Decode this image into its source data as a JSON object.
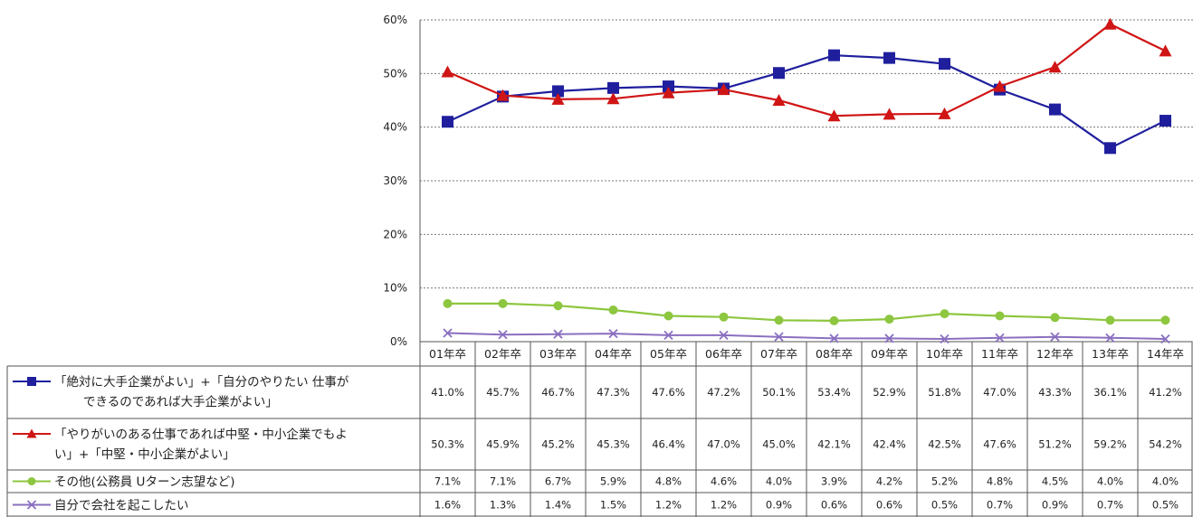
{
  "chart_data": {
    "type": "line",
    "title": "",
    "xlabel": "",
    "ylabel": "",
    "ylim": [
      0,
      60
    ],
    "y_ticks": [
      "0%",
      "10%",
      "20%",
      "30%",
      "40%",
      "50%",
      "60%"
    ],
    "y_tick_values": [
      0,
      10,
      20,
      30,
      40,
      50,
      60
    ],
    "grid": true,
    "categories": [
      "01年卒",
      "02年卒",
      "03年卒",
      "04年卒",
      "05年卒",
      "06年卒",
      "07年卒",
      "08年卒",
      "09年卒",
      "10年卒",
      "11年卒",
      "12年卒",
      "13年卒",
      "14年卒"
    ],
    "series": [
      {
        "legend_lines": [
          "「絶対に大手企業がよい」+「自分のやりたい 仕事が",
          "できるのであれば大手企業がよい」"
        ],
        "color": "#1f1f9e",
        "marker": "square",
        "values": [
          41.0,
          45.7,
          46.7,
          47.3,
          47.6,
          47.2,
          50.1,
          53.4,
          52.9,
          51.8,
          47.0,
          43.3,
          36.1,
          41.2
        ],
        "labels": [
          "41.0%",
          "45.7%",
          "46.7%",
          "47.3%",
          "47.6%",
          "47.2%",
          "50.1%",
          "53.4%",
          "52.9%",
          "51.8%",
          "47.0%",
          "43.3%",
          "36.1%",
          "41.2%"
        ]
      },
      {
        "legend_lines": [
          "「やりがいのある仕事であれば中堅・中小企業でもよ",
          "い」+「中堅・中小企業がよい」"
        ],
        "color": "#d01515",
        "marker": "triangle",
        "values": [
          50.3,
          45.9,
          45.2,
          45.3,
          46.4,
          47.0,
          45.0,
          42.1,
          42.4,
          42.5,
          47.6,
          51.2,
          59.2,
          54.2
        ],
        "labels": [
          "50.3%",
          "45.9%",
          "45.2%",
          "45.3%",
          "46.4%",
          "47.0%",
          "45.0%",
          "42.1%",
          "42.4%",
          "42.5%",
          "47.6%",
          "51.2%",
          "59.2%",
          "54.2%"
        ]
      },
      {
        "legend_lines": [
          "その他(公務員 Uターン志望など)"
        ],
        "color": "#8dc63f",
        "marker": "circle",
        "values": [
          7.1,
          7.1,
          6.7,
          5.9,
          4.8,
          4.6,
          4.0,
          3.9,
          4.2,
          5.2,
          4.8,
          4.5,
          4.0,
          4.0
        ],
        "labels": [
          "7.1%",
          "7.1%",
          "6.7%",
          "5.9%",
          "4.8%",
          "4.6%",
          "4.0%",
          "3.9%",
          "4.2%",
          "5.2%",
          "4.8%",
          "4.5%",
          "4.0%",
          "4.0%"
        ]
      },
      {
        "legend_lines": [
          "自分で会社を起こしたい"
        ],
        "color": "#8a6fc0",
        "marker": "cross",
        "values": [
          1.6,
          1.3,
          1.4,
          1.5,
          1.2,
          1.2,
          0.9,
          0.6,
          0.6,
          0.5,
          0.7,
          0.9,
          0.7,
          0.5
        ],
        "labels": [
          "1.6%",
          "1.3%",
          "1.4%",
          "1.5%",
          "1.2%",
          "1.2%",
          "0.9%",
          "0.6%",
          "0.6%",
          "0.5%",
          "0.7%",
          "0.9%",
          "0.7%",
          "0.5%"
        ]
      }
    ]
  }
}
